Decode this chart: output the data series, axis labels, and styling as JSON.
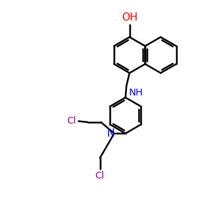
{
  "bg_color": "#ffffff",
  "bond_color": "#000000",
  "bond_width": 1.8,
  "dbo": 0.09,
  "atom_colors": {
    "O": "#ff0000",
    "N": "#0000cc",
    "Cl": "#990099"
  },
  "font_size": 10,
  "fig_size": [
    3.0,
    3.0
  ],
  "dpi": 100,
  "xlim": [
    0,
    10
  ],
  "ylim": [
    0,
    10
  ]
}
